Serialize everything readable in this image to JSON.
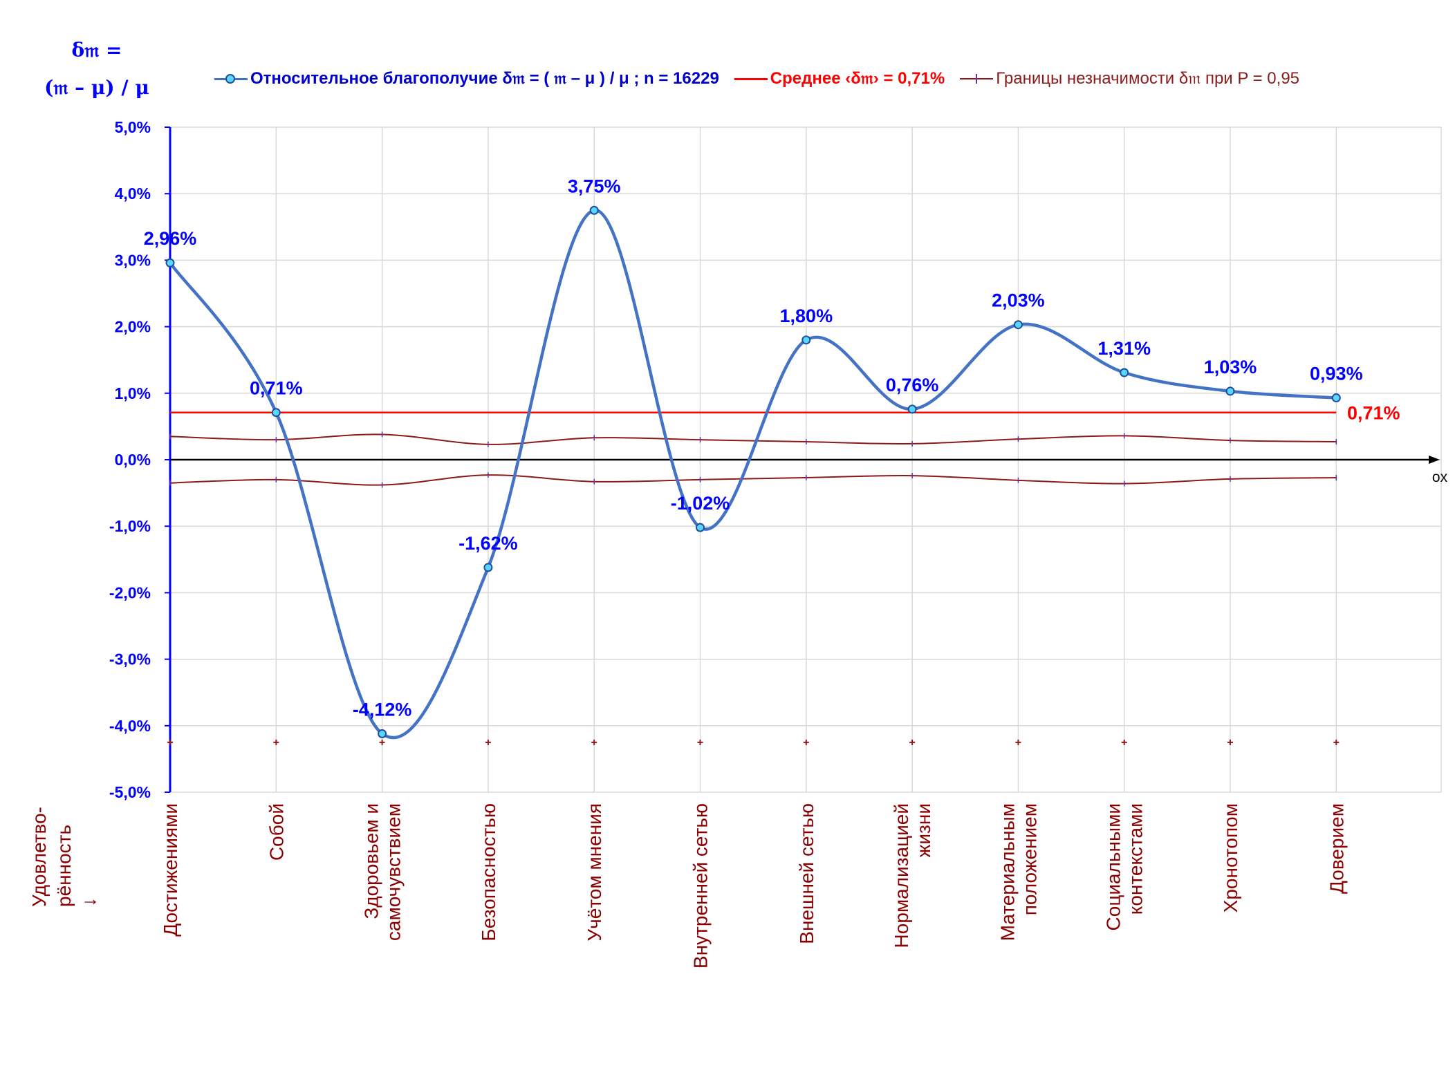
{
  "title": {
    "line1": "δ𝔪 =",
    "line2": "(𝔪 – μ) / μ"
  },
  "legend": {
    "main": "Относительное благополучие δ𝔪 = ( 𝔪 – μ ) / μ ; n = 16229",
    "average": "Среднее ‹δ𝔪› = 0,71%",
    "bounds": "Границы незначимости δ𝔪 при P = 0,95"
  },
  "colors": {
    "main_line": "#4472c4",
    "main_marker_fill": "#5ad7ff",
    "average_line": "#ff0000",
    "bounds_line": "#8b1a1a",
    "bounds_tick": "#6f2da8",
    "axis_labels": "#0000ff",
    "category_labels": "#8b0000",
    "grid": "#d9d9d9"
  },
  "chart_data": {
    "type": "line",
    "categories": [
      [
        "Достижениями"
      ],
      [
        "Собой"
      ],
      [
        "Здоровьем и",
        "самочувствием"
      ],
      [
        "Безопасностью"
      ],
      [
        "Учётом мнения"
      ],
      [
        "Внутренней сетью"
      ],
      [
        "Внешней сетью"
      ],
      [
        "Нормализацией",
        "жизни"
      ],
      [
        "Материальным",
        "положением"
      ],
      [
        "Социальными",
        "контекстами"
      ],
      [
        "Хронотопом"
      ],
      [
        "Доверием"
      ]
    ],
    "y_axis_title": [
      "Удовлетво-",
      "рённость",
      "↓"
    ],
    "x_axis_name": "ox",
    "ylim": [
      -5,
      5
    ],
    "y_ticks": [
      5,
      4,
      3,
      2,
      1,
      0,
      -1,
      -2,
      -3,
      -4,
      -5
    ],
    "y_tick_labels": [
      "5,0%",
      "4,0%",
      "3,0%",
      "2,0%",
      "1,0%",
      "0,0%",
      "-1,0%",
      "-2,0%",
      "-3,0%",
      "-4,0%",
      "-5,0%"
    ],
    "grid": true,
    "series": [
      {
        "name": "Относительное благополучие",
        "values": [
          2.96,
          0.71,
          -4.12,
          -1.62,
          3.75,
          -1.02,
          1.8,
          0.76,
          2.03,
          1.31,
          1.03,
          0.93
        ],
        "labels": [
          "2,96%",
          "0,71%",
          "-4,12%",
          "-1,62%",
          "3,75%",
          "-1,02%",
          "1,80%",
          "0,76%",
          "2,03%",
          "1,31%",
          "1,03%",
          "0,93%"
        ]
      },
      {
        "name": "Среднее",
        "value": 0.71,
        "label": "0,71%"
      },
      {
        "name": "Границы незначимости (верхняя)",
        "values": [
          0.35,
          0.3,
          0.38,
          0.23,
          0.33,
          0.3,
          0.27,
          0.24,
          0.31,
          0.36,
          0.29,
          0.27
        ]
      },
      {
        "name": "Границы незначимости (нижняя)",
        "values": [
          -0.35,
          -0.3,
          -0.38,
          -0.23,
          -0.33,
          -0.3,
          -0.27,
          -0.24,
          -0.31,
          -0.36,
          -0.29,
          -0.27
        ]
      },
      {
        "name": "Маркеры",
        "values": [
          -4.25,
          -4.25,
          -4.25,
          -4.25,
          -4.25,
          -4.25,
          -4.25,
          -4.25,
          -4.25,
          -4.25,
          -4.25,
          -4.25
        ]
      }
    ]
  }
}
